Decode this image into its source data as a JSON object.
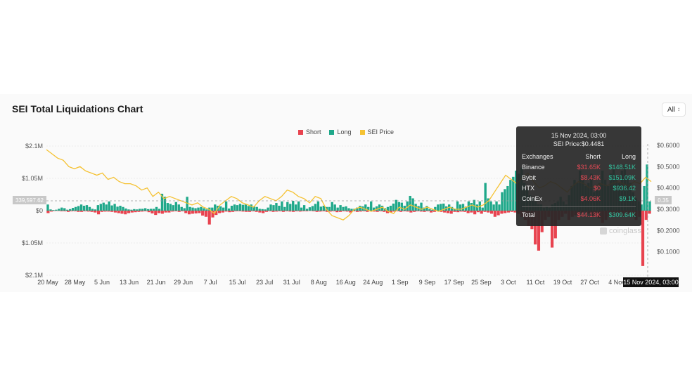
{
  "page": {
    "title": "SEI Total Liquidations Chart",
    "range_select": "All"
  },
  "colors": {
    "short": "#e8434f",
    "long": "#1fa88a",
    "price": "#f5c233"
  },
  "legend": [
    {
      "label": "Short",
      "color": "#e8434f"
    },
    {
      "label": "Long",
      "color": "#1fa88a"
    },
    {
      "label": "SEI Price",
      "color": "#f5c233"
    }
  ],
  "tooltip": {
    "header": "15 Nov 2024, 03:00",
    "price": "SEI Price:$0.4481",
    "columns": [
      "Exchanges",
      "Short",
      "Long"
    ],
    "rows": [
      {
        "exchange": "Binance",
        "short": "$31.65K",
        "long": "$148.51K"
      },
      {
        "exchange": "Bybit",
        "short": "$8.43K",
        "long": "$151.09K"
      },
      {
        "exchange": "HTX",
        "short": "$0",
        "long": "$936.42"
      },
      {
        "exchange": "CoinEx",
        "short": "$4.06K",
        "long": "$9.1K"
      }
    ],
    "total": {
      "label": "Total",
      "short": "$44.13K",
      "long": "$309.64K"
    }
  },
  "crosshair": {
    "x_label": "15 Nov 2024, 03:00",
    "left_value": "339,597.62",
    "right_value": "0.35"
  },
  "watermark": "coinglass",
  "chart_data": {
    "type": "bar",
    "title": "SEI Total Liquidations Chart",
    "x_ticks": [
      "20 May",
      "28 May",
      "5 Jun",
      "13 Jun",
      "21 Jun",
      "29 Jun",
      "7 Jul",
      "15 Jul",
      "23 Jul",
      "31 Jul",
      "8 Aug",
      "16 Aug",
      "24 Aug",
      "1 Sep",
      "9 Sep",
      "17 Sep",
      "25 Sep",
      "3 Oct",
      "11 Oct",
      "19 Oct",
      "27 Oct",
      "4 Nov"
    ],
    "y_left_ticks": [
      "$2.1M",
      "$1.05M",
      "$0",
      "$1.05M",
      "$2.1M"
    ],
    "y_left_range": [
      -2100000,
      2100000
    ],
    "y_right_ticks": [
      "$0.6000",
      "$0.5000",
      "$0.4000",
      "$0.3000",
      "$0.2000",
      "$0.1000"
    ],
    "y_right_range": [
      0.0,
      0.6
    ],
    "series": [
      {
        "name": "Long",
        "values": [
          200000,
          40000,
          20000,
          30000,
          60000,
          100000,
          80000,
          30000,
          50000,
          90000,
          120000,
          150000,
          200000,
          160000,
          180000,
          120000,
          60000,
          40000,
          180000,
          220000,
          260000,
          200000,
          300000,
          170000,
          220000,
          130000,
          160000,
          120000,
          70000,
          40000,
          30000,
          50000,
          40000,
          60000,
          60000,
          80000,
          50000,
          60000,
          60000,
          120000,
          60000,
          550000,
          450000,
          250000,
          220000,
          180000,
          280000,
          200000,
          120000,
          80000,
          450000,
          120000,
          100000,
          80000,
          100000,
          120000,
          80000,
          40000,
          100000,
          100000,
          200000,
          160000,
          140000,
          100000,
          300000,
          70000,
          160000,
          200000,
          180000,
          220000,
          190000,
          200000,
          150000,
          200000,
          140000,
          120000,
          60000,
          50000,
          40000,
          100000,
          200000,
          180000,
          250000,
          160000,
          300000,
          120000,
          280000,
          220000,
          320000,
          200000,
          300000,
          100000,
          180000,
          60000,
          110000,
          150000,
          220000,
          300000,
          130000,
          160000,
          120000,
          120000,
          280000,
          200000,
          100000,
          180000,
          120000,
          140000,
          80000,
          60000,
          60000,
          100000,
          160000,
          140000,
          200000,
          120000,
          300000,
          100000,
          140000,
          200000,
          160000,
          80000,
          120000,
          160000,
          230000,
          350000,
          280000,
          260000,
          160000,
          300000,
          480000,
          400000,
          220000,
          150000,
          260000,
          100000,
          150000,
          50000,
          30000,
          120000,
          200000,
          220000,
          230000,
          140000,
          200000,
          120000,
          60000,
          300000,
          200000,
          220000,
          130000,
          300000,
          250000,
          350000,
          200000,
          300000,
          100000,
          900000,
          400000,
          300000,
          200000,
          300000,
          200000,
          600000,
          700000,
          800000,
          1000000,
          1100000,
          1300000,
          1200000,
          1400000,
          900000,
          700000,
          500000,
          400000,
          300000,
          200000,
          200000,
          100000,
          150000,
          100000,
          200000,
          250000,
          300000,
          450000,
          300000,
          200000,
          500000,
          800000,
          1000000,
          900000,
          1300000,
          1100000,
          800000,
          900000,
          1200000,
          600000,
          700000,
          900000,
          1300000,
          1000000,
          800000,
          1200000,
          1400000,
          1100000,
          900000,
          1300000,
          1500000,
          1100000,
          900000,
          600000,
          400000,
          300000,
          200000,
          800000,
          1500000,
          300000
        ],
        "color": "#1fa88a"
      },
      {
        "name": "Short",
        "values": [
          80000,
          30000,
          10000,
          10000,
          20000,
          20000,
          40000,
          20000,
          20000,
          40000,
          40000,
          20000,
          30000,
          40000,
          60000,
          120000,
          40000,
          30000,
          30000,
          40000,
          60000,
          80000,
          100000,
          120000,
          80000,
          60000,
          50000,
          40000,
          30000,
          20000,
          50000,
          90000,
          140000,
          80000,
          100000,
          60000,
          60000,
          30000,
          20000,
          40000,
          20000,
          80000,
          120000,
          100000,
          90000,
          80000,
          160000,
          200000,
          450000,
          220000,
          140000,
          80000,
          60000,
          30000,
          50000,
          40000,
          20000,
          20000,
          30000,
          40000,
          40000,
          20000,
          40000,
          60000,
          80000,
          40000,
          20000,
          40000,
          30000,
          20000,
          40000,
          20000,
          30000,
          40000,
          20000,
          30000,
          20000,
          20000,
          10000,
          20000,
          40000,
          30000,
          20000,
          40000,
          30000,
          20000,
          50000,
          40000,
          20000,
          30000,
          60000,
          20000,
          40000,
          30000,
          20000,
          40000,
          20000,
          30000,
          40000,
          20000,
          40000,
          80000,
          60000,
          30000,
          20000,
          40000,
          20000,
          30000,
          60000,
          40000,
          20000,
          30000,
          40000,
          20000,
          60000,
          40000,
          20000,
          40000,
          60000,
          80000,
          100000,
          40000,
          50000,
          30000,
          40000,
          80000,
          60000,
          120000,
          50000,
          100000,
          40000,
          60000,
          100000,
          200000,
          150000,
          100000,
          80000,
          60000,
          40000,
          60000,
          100000,
          200000,
          300000,
          500000,
          600000,
          1100000,
          1300000,
          700000,
          300000,
          200000,
          1200000,
          900000,
          300000,
          200000,
          100000,
          300000,
          200000,
          150000,
          100000,
          60000,
          40000,
          100000,
          200000,
          150000,
          250000,
          400000,
          300000,
          200000,
          150000,
          100000,
          80000,
          200000,
          150000,
          100000,
          200000,
          300000,
          200000,
          1800000,
          300000,
          100000
        ],
        "color": "#e8434f"
      },
      {
        "name": "SEI Price",
        "values": [
          0.58,
          0.56,
          0.54,
          0.53,
          0.5,
          0.49,
          0.5,
          0.48,
          0.47,
          0.46,
          0.47,
          0.44,
          0.45,
          0.43,
          0.42,
          0.42,
          0.41,
          0.39,
          0.4,
          0.36,
          0.38,
          0.35,
          0.36,
          0.35,
          0.34,
          0.33,
          0.32,
          0.33,
          0.31,
          0.3,
          0.28,
          0.32,
          0.34,
          0.36,
          0.35,
          0.33,
          0.32,
          0.31,
          0.34,
          0.36,
          0.35,
          0.34,
          0.36,
          0.39,
          0.38,
          0.36,
          0.35,
          0.33,
          0.36,
          0.35,
          0.3,
          0.27,
          0.26,
          0.25,
          0.27,
          0.3,
          0.31,
          0.3,
          0.29,
          0.3,
          0.31,
          0.29,
          0.28,
          0.31,
          0.3,
          0.32,
          0.31,
          0.3,
          0.31,
          0.3,
          0.29,
          0.3,
          0.31,
          0.3,
          0.3,
          0.31,
          0.32,
          0.31,
          0.32,
          0.34,
          0.38,
          0.42,
          0.46,
          0.44,
          0.42,
          0.45,
          0.47,
          0.43,
          0.4,
          0.41,
          0.43,
          0.42,
          0.4,
          0.38,
          0.41,
          0.43,
          0.42,
          0.4,
          0.41,
          0.42,
          0.41,
          0.42,
          0.43,
          0.42,
          0.41,
          0.43,
          0.42,
          0.45,
          0.43
        ],
        "color": "#f5c233"
      }
    ],
    "ylabel": "",
    "y2label": "",
    "grid": true,
    "legend_position": "top-center"
  }
}
